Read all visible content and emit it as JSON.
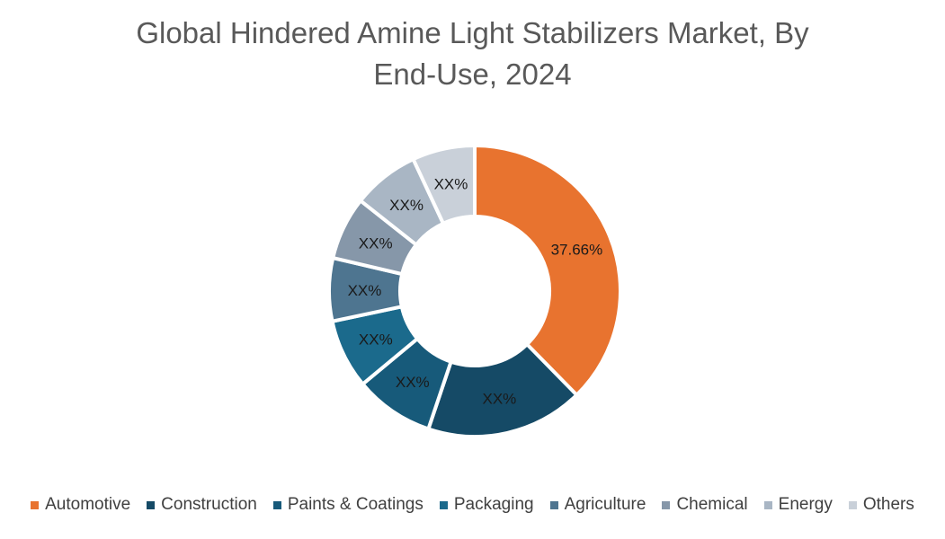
{
  "chart_data": {
    "type": "pie",
    "variant": "donut",
    "title": "Global Hindered Amine Light Stabilizers Market, By End-Use, 2024",
    "title_lines": [
      "Global Hindered Amine Light Stabilizers Market, By",
      "End-Use, 2024"
    ],
    "legend_position": "bottom",
    "categories": [
      "Automotive",
      "Construction",
      "Paints & Coatings",
      "Packaging",
      "Agriculture",
      "Chemical",
      "Energy",
      "Others"
    ],
    "values": [
      37.66,
      17.5,
      8.8,
      7.7,
      7.0,
      7.0,
      7.4,
      6.94
    ],
    "data_labels": [
      "37.66%",
      "XX%",
      "XX%",
      "XX%",
      "XX%",
      "XX%",
      "XX%",
      "XX%"
    ],
    "colors": [
      "#E8732F",
      "#154A66",
      "#175A7A",
      "#1B6A8C",
      "#4E7590",
      "#8697A9",
      "#A9B6C4",
      "#C9D0D9"
    ]
  }
}
